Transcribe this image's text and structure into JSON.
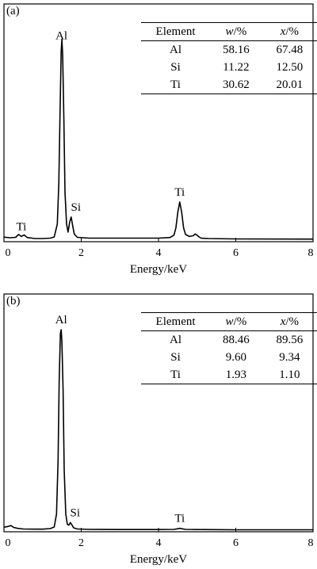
{
  "chart_data": [
    {
      "type": "line",
      "panel_label": "(a)",
      "title": "",
      "xlabel": "Energy/keV",
      "ylabel": "",
      "xlim": [
        0,
        8
      ],
      "xticks": [
        0,
        2,
        4,
        6,
        8
      ],
      "grid": false,
      "series": [
        {
          "x": [
            0,
            0.15,
            0.3,
            0.38,
            0.45,
            0.52,
            0.6,
            0.8,
            1.0,
            1.2,
            1.3,
            1.38,
            1.42,
            1.45,
            1.48,
            1.5,
            1.52,
            1.55,
            1.58,
            1.62,
            1.66,
            1.7,
            1.74,
            1.78,
            1.82,
            1.9,
            2.2,
            3.0,
            4.0,
            4.3,
            4.4,
            4.45,
            4.5,
            4.55,
            4.6,
            4.65,
            4.7,
            4.8,
            4.9,
            4.95,
            5.0,
            5.05,
            5.1,
            5.3,
            6.0,
            8.0
          ],
          "y": [
            1.5,
            1.2,
            1.4,
            2.8,
            1.8,
            2.6,
            1.3,
            0.8,
            0.8,
            1.0,
            1.6,
            8,
            28,
            62,
            94,
            100,
            92,
            60,
            24,
            8,
            4,
            9,
            11.5,
            7,
            3,
            1.4,
            1.0,
            1.0,
            1.0,
            1.3,
            2.5,
            6,
            14,
            19,
            14,
            6,
            2.8,
            1.8,
            2.2,
            3.1,
            2.4,
            1.6,
            1.0,
            0.8,
            0.6,
            0.5
          ]
        }
      ],
      "annotations": [
        {
          "text": "Al",
          "x": 1.49
        },
        {
          "text": "Si",
          "x": 1.74
        },
        {
          "text": "Ti",
          "x": 0.45
        },
        {
          "text": "Ti",
          "x": 4.55
        }
      ]
    },
    {
      "type": "line",
      "panel_label": "(b)",
      "title": "",
      "xlabel": "Energy/keV",
      "ylabel": "",
      "xlim": [
        0,
        8
      ],
      "xticks": [
        0,
        2,
        4,
        6,
        8
      ],
      "grid": false,
      "series": [
        {
          "x": [
            0,
            0.1,
            0.18,
            0.25,
            0.35,
            0.5,
            0.8,
            1.0,
            1.2,
            1.3,
            1.36,
            1.4,
            1.43,
            1.46,
            1.48,
            1.5,
            1.53,
            1.56,
            1.6,
            1.64,
            1.68,
            1.72,
            1.76,
            1.8,
            1.9,
            2.2,
            3.0,
            4.0,
            4.4,
            4.5,
            4.55,
            4.6,
            4.7,
            5.0,
            6.0,
            8.0
          ],
          "y": [
            1.5,
            1.8,
            2.3,
            1.4,
            0.9,
            0.6,
            0.5,
            0.5,
            0.8,
            1.6,
            8,
            35,
            75,
            98,
            100,
            94,
            70,
            30,
            8,
            3,
            2.5,
            3.8,
            2.6,
            1.2,
            0.6,
            0.4,
            0.3,
            0.3,
            0.4,
            0.7,
            0.9,
            0.7,
            0.4,
            0.3,
            0.2,
            0.2
          ]
        }
      ],
      "annotations": [
        {
          "text": "Al",
          "x": 1.48
        },
        {
          "text": "Si",
          "x": 1.72
        },
        {
          "text": "Ti",
          "x": 4.55
        }
      ]
    }
  ],
  "tables": [
    {
      "headers": {
        "element": "Element",
        "w_var": "w",
        "w_unit": "/%",
        "x_var": "x",
        "x_unit": "/%"
      },
      "rows": [
        {
          "element": "Al",
          "w": "58.16",
          "x": "67.48"
        },
        {
          "element": "Si",
          "w": "11.22",
          "x": "12.50"
        },
        {
          "element": "Ti",
          "w": "30.62",
          "x": "20.01"
        }
      ]
    },
    {
      "headers": {
        "element": "Element",
        "w_var": "w",
        "w_unit": "/%",
        "x_var": "x",
        "x_unit": "/%"
      },
      "rows": [
        {
          "element": "Al",
          "w": "88.46",
          "x": "89.56"
        },
        {
          "element": "Si",
          "w": "9.60",
          "x": "9.34"
        },
        {
          "element": "Ti",
          "w": "1.93",
          "x": "1.10"
        }
      ]
    }
  ]
}
